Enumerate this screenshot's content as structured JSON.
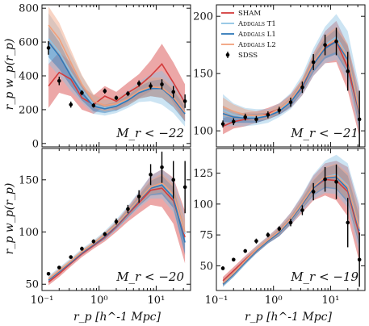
{
  "figure": {
    "y_axis_label": "r_p w_p(r_p)",
    "x_axis_label": "r_p [h^-1 Mpc]"
  },
  "colors": {
    "sham": "#d43c3c",
    "t1": "#8ec3e4",
    "l1": "#2f78b8",
    "l2": "#f0a07c",
    "sdss": "#000000"
  },
  "legend": [
    {
      "key": "sham",
      "label": "SHAM",
      "marker": "line"
    },
    {
      "key": "t1",
      "label": "Addgals T1",
      "marker": "line"
    },
    {
      "key": "l1",
      "label": "Addgals L1",
      "marker": "line"
    },
    {
      "key": "l2",
      "label": "Addgals L2",
      "marker": "line"
    },
    {
      "key": "sdss",
      "label": "SDSS",
      "marker": "errorbar"
    }
  ],
  "chart_data": [
    {
      "type": "line",
      "label": "M_r < −22",
      "xscale": "log",
      "xlim": [
        0.1,
        40
      ],
      "ylim": [
        -20,
        820
      ],
      "yticks": [
        0,
        200,
        400,
        600,
        800
      ],
      "show_y_labels": true,
      "show_x_labels": false,
      "legend": false,
      "x": [
        0.13,
        0.2,
        0.32,
        0.5,
        0.8,
        1.26,
        2.0,
        3.2,
        5.0,
        8.0,
        12.6,
        20.0,
        32.0
      ],
      "sdss": {
        "y": [
          565,
          370,
          230,
          300,
          225,
          310,
          270,
          295,
          355,
          340,
          350,
          305,
          250
        ],
        "err": [
          40,
          25,
          18,
          15,
          13,
          15,
          13,
          15,
          18,
          20,
          30,
          35,
          40
        ]
      },
      "series": [
        {
          "key": "sham",
          "y": [
            340,
            420,
            380,
            270,
            230,
            280,
            250,
            300,
            340,
            400,
            470,
            360,
            240
          ],
          "band": [
            130,
            120,
            100,
            70,
            55,
            60,
            55,
            60,
            70,
            90,
            120,
            120,
            110
          ]
        },
        {
          "key": "t1",
          "y": [
            620,
            540,
            420,
            320,
            230,
            210,
            225,
            260,
            305,
            330,
            330,
            270,
            180
          ],
          "band": [
            150,
            140,
            110,
            80,
            55,
            45,
            45,
            50,
            60,
            80,
            100,
            90,
            80
          ]
        },
        {
          "key": "l1",
          "y": [
            600,
            520,
            400,
            300,
            220,
            205,
            220,
            255,
            300,
            325,
            325,
            265,
            175
          ],
          "band": [
            90,
            80,
            60,
            45,
            30,
            25,
            25,
            30,
            35,
            45,
            55,
            50,
            45
          ]
        },
        {
          "key": "l2",
          "y": [
            700,
            620,
            480,
            350,
            250,
            225,
            235,
            265,
            310,
            335,
            330,
            275,
            185
          ],
          "band": [
            110,
            95,
            75,
            55,
            40,
            35,
            35,
            40,
            45,
            55,
            60,
            55,
            50
          ]
        }
      ]
    },
    {
      "type": "line",
      "label": "M_r < −21",
      "xscale": "log",
      "xlim": [
        0.1,
        40
      ],
      "ylim": [
        86,
        210
      ],
      "yticks": [
        100,
        150,
        200
      ],
      "show_y_labels": true,
      "show_x_labels": false,
      "legend": true,
      "x": [
        0.13,
        0.2,
        0.32,
        0.5,
        0.8,
        1.26,
        2.0,
        3.2,
        5.0,
        8.0,
        12.6,
        20.0,
        32.0
      ],
      "sdss": {
        "y": [
          106,
          108,
          112,
          110,
          114,
          118,
          125,
          138,
          160,
          175,
          178,
          152,
          110
        ],
        "err": [
          3,
          3,
          3,
          3,
          3,
          3,
          4,
          5,
          7,
          9,
          12,
          17,
          25
        ]
      },
      "series": [
        {
          "key": "sham",
          "y": [
            104,
            108,
            110,
            112,
            115,
            119,
            126,
            138,
            158,
            173,
            178,
            155,
            115
          ],
          "band": [
            7,
            6,
            6,
            5,
            5,
            5,
            6,
            7,
            10,
            14,
            18,
            20,
            20
          ]
        },
        {
          "key": "t1",
          "y": [
            118,
            114,
            112,
            112,
            113,
            118,
            126,
            140,
            160,
            175,
            182,
            165,
            118
          ],
          "band": [
            14,
            10,
            8,
            7,
            6,
            6,
            7,
            9,
            12,
            16,
            20,
            22,
            20
          ]
        },
        {
          "key": "l1",
          "y": [
            115,
            112,
            111,
            111,
            113,
            117,
            125,
            139,
            158,
            172,
            178,
            162,
            115
          ],
          "band": [
            7,
            5,
            4,
            4,
            3,
            3,
            4,
            5,
            7,
            9,
            11,
            12,
            12
          ]
        },
        {
          "key": "l2",
          "y": [
            121,
            117,
            114,
            113,
            114,
            119,
            127,
            141,
            160,
            174,
            180,
            164,
            117
          ],
          "band": [
            8,
            6,
            5,
            4,
            4,
            4,
            4,
            5,
            7,
            9,
            11,
            12,
            12
          ]
        }
      ]
    },
    {
      "type": "line",
      "label": "M_r < −20",
      "xscale": "log",
      "xlim": [
        0.1,
        40
      ],
      "ylim": [
        44,
        180
      ],
      "yticks": [
        50,
        100,
        150
      ],
      "show_y_labels": true,
      "show_x_labels": true,
      "legend": false,
      "x": [
        0.13,
        0.2,
        0.32,
        0.5,
        0.8,
        1.26,
        2.0,
        3.2,
        5.0,
        8.0,
        12.6,
        20.0,
        32.0
      ],
      "sdss": {
        "y": [
          60,
          66,
          76,
          84,
          91,
          98,
          110,
          122,
          134,
          155,
          162,
          150,
          143
        ],
        "err": [
          1.5,
          1.5,
          1.5,
          2,
          2,
          2,
          3,
          4,
          6,
          10,
          15,
          18,
          25
        ]
      },
      "series": [
        {
          "key": "sham",
          "y": [
            52,
            60,
            70,
            79,
            87,
            95,
            105,
            117,
            128,
            140,
            142,
            130,
            95
          ],
          "band": [
            3,
            3,
            3,
            3,
            3,
            4,
            5,
            7,
            10,
            14,
            18,
            22,
            25
          ]
        },
        {
          "key": "t1",
          "y": [
            55,
            63,
            72,
            81,
            89,
            97,
            107,
            119,
            131,
            143,
            146,
            135,
            98
          ],
          "band": [
            3,
            3,
            3,
            3,
            3,
            4,
            5,
            6,
            8,
            11,
            14,
            16,
            18
          ]
        },
        {
          "key": "l1",
          "y": [
            54,
            62,
            71,
            80,
            88,
            96,
            106,
            118,
            130,
            142,
            145,
            133,
            90
          ],
          "band": [
            2,
            2,
            2,
            2,
            2,
            3,
            3,
            4,
            5,
            7,
            9,
            10,
            12
          ]
        },
        {
          "key": "l2",
          "y": [
            55,
            63,
            72,
            81,
            89,
            97,
            107,
            119,
            131,
            143,
            147,
            136,
            100
          ],
          "band": [
            2,
            2,
            2,
            2,
            2,
            3,
            3,
            4,
            5,
            7,
            9,
            10,
            12
          ]
        }
      ]
    },
    {
      "type": "line",
      "label": "M_r < −19",
      "xscale": "log",
      "xlim": [
        0.1,
        40
      ],
      "ylim": [
        30,
        145
      ],
      "yticks": [
        50,
        75,
        100,
        125
      ],
      "show_y_labels": true,
      "show_x_labels": true,
      "legend": false,
      "x": [
        0.13,
        0.2,
        0.32,
        0.5,
        0.8,
        1.26,
        2.0,
        3.2,
        5.0,
        8.0,
        12.6,
        20.0,
        32.0
      ],
      "sdss": {
        "y": [
          48,
          55,
          62,
          70,
          75,
          80,
          85,
          95,
          110,
          120,
          118,
          85,
          55
        ],
        "err": [
          1.5,
          1.5,
          1.5,
          2,
          2,
          2,
          3,
          4,
          7,
          10,
          14,
          20,
          22
        ]
      },
      "series": [
        {
          "key": "sham",
          "y": [
            38,
            46,
            55,
            63,
            71,
            78,
            88,
            100,
            113,
            120,
            119,
            110,
            75
          ],
          "band": [
            3,
            3,
            3,
            3,
            3,
            4,
            5,
            7,
            10,
            13,
            16,
            20,
            22
          ]
        },
        {
          "key": "t1",
          "y": [
            36,
            44,
            54,
            63,
            71,
            78,
            88,
            101,
            114,
            122,
            124,
            115,
            80
          ],
          "band": [
            3,
            3,
            3,
            3,
            3,
            4,
            5,
            7,
            10,
            13,
            16,
            18,
            20
          ]
        },
        {
          "key": "l1",
          "y": [
            35,
            43,
            53,
            62,
            70,
            77,
            87,
            100,
            113,
            121,
            122,
            112,
            78
          ],
          "band": [
            2,
            2,
            2,
            2,
            2,
            3,
            3,
            4,
            6,
            8,
            10,
            11,
            12
          ]
        },
        {
          "key": "l2",
          "y": [
            36,
            44,
            54,
            63,
            71,
            78,
            88,
            101,
            114,
            122,
            123,
            114,
            80
          ],
          "band": [
            2,
            2,
            2,
            2,
            2,
            3,
            3,
            4,
            6,
            8,
            10,
            11,
            12
          ]
        }
      ]
    }
  ]
}
